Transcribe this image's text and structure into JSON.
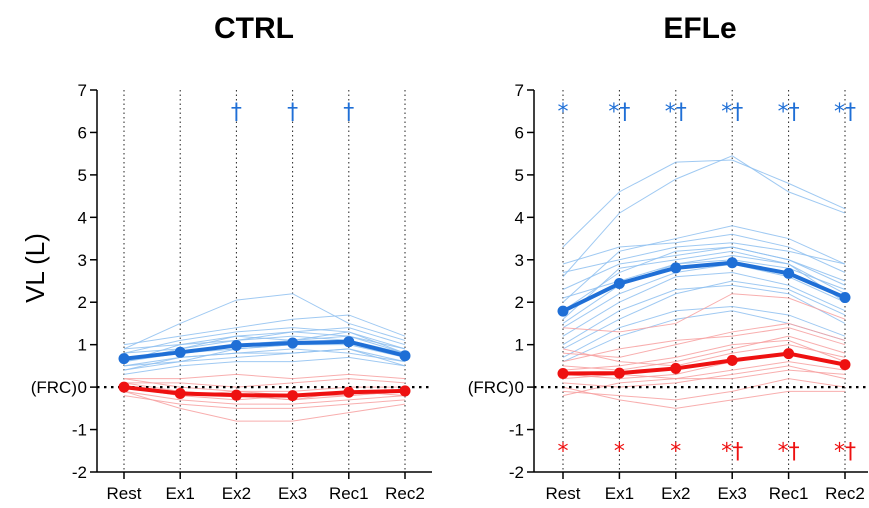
{
  "figure": {
    "ylabel": "VL (L)",
    "ref_label": "(FRC)",
    "colors": {
      "blue": "#1f6fd6",
      "blue_light": "#8ec0f0",
      "red": "#ee1111",
      "red_light": "#f7a0a0"
    }
  },
  "chart_data": [
    {
      "type": "line",
      "title": "CTRL",
      "categories": [
        "Rest",
        "Ex1",
        "Ex2",
        "Ex3",
        "Rec1",
        "Rec2"
      ],
      "ylabel": "VL (L)",
      "ylim": [
        -2,
        7
      ],
      "yticks": [
        "-2",
        "-1",
        "0",
        "1",
        "2",
        "3",
        "4",
        "5",
        "6",
        "7"
      ],
      "grid": "dotted vertical line at each category; dotted horizontal line at 0 (FRC)",
      "series": [
        {
          "color": "#1f6fd6",
          "style": "bold mean",
          "values": [
            0.67,
            0.82,
            0.98,
            1.04,
            1.07,
            0.74
          ]
        },
        {
          "color": "#ee1111",
          "style": "bold mean",
          "values": [
            0.0,
            -0.15,
            -0.19,
            -0.2,
            -0.12,
            -0.09
          ]
        }
      ],
      "individual_series": {
        "blue": [
          [
            0.6,
            0.9,
            1.1,
            1.2,
            1.1,
            0.8
          ],
          [
            0.5,
            0.7,
            0.8,
            0.9,
            0.8,
            0.6
          ],
          [
            0.8,
            1.1,
            1.3,
            1.4,
            1.3,
            0.9
          ],
          [
            0.4,
            0.6,
            0.7,
            0.8,
            0.9,
            0.6
          ],
          [
            0.9,
            1.5,
            2.05,
            2.2,
            1.5,
            1.1
          ],
          [
            0.7,
            0.8,
            1.0,
            1.1,
            1.2,
            0.8
          ],
          [
            0.3,
            0.5,
            0.6,
            0.6,
            0.7,
            0.5
          ],
          [
            1.0,
            1.2,
            1.4,
            1.6,
            1.7,
            1.2
          ],
          [
            0.6,
            1.0,
            1.2,
            1.1,
            1.3,
            0.8
          ],
          [
            0.5,
            0.6,
            0.9,
            1.0,
            1.0,
            0.7
          ],
          [
            0.8,
            0.9,
            1.2,
            1.3,
            1.4,
            1.0
          ],
          [
            0.4,
            0.7,
            0.8,
            0.8,
            0.9,
            0.5
          ],
          [
            0.9,
            1.0,
            1.1,
            1.3,
            1.2,
            0.9
          ],
          [
            0.6,
            0.8,
            0.9,
            1.0,
            1.1,
            0.7
          ]
        ],
        "red": [
          [
            0.1,
            -0.1,
            -0.2,
            -0.3,
            -0.2,
            -0.1
          ],
          [
            -0.1,
            -0.3,
            -0.4,
            -0.4,
            -0.3,
            -0.2
          ],
          [
            0.2,
            0.0,
            -0.1,
            -0.1,
            0.0,
            0.0
          ],
          [
            0.0,
            -0.2,
            -0.3,
            -0.2,
            -0.1,
            -0.1
          ],
          [
            -0.2,
            -0.4,
            -0.5,
            -0.5,
            -0.4,
            -0.3
          ],
          [
            0.1,
            0.1,
            0.0,
            0.1,
            0.2,
            0.1
          ],
          [
            0.0,
            -0.1,
            -0.2,
            -0.3,
            -0.1,
            -0.2
          ],
          [
            -0.1,
            -0.5,
            -0.8,
            -0.8,
            -0.6,
            -0.4
          ],
          [
            0.2,
            0.2,
            0.3,
            0.2,
            0.3,
            0.2
          ],
          [
            0.0,
            -0.2,
            -0.1,
            -0.2,
            -0.2,
            -0.1
          ]
        ]
      },
      "annotations": [
        {
          "category": "Ex2",
          "text": "†",
          "color": "#1f6fd6",
          "y": 6.6
        },
        {
          "category": "Ex3",
          "text": "†",
          "color": "#1f6fd6",
          "y": 6.6
        },
        {
          "category": "Rec1",
          "text": "†",
          "color": "#1f6fd6",
          "y": 6.6
        }
      ]
    },
    {
      "type": "line",
      "title": "EFLe",
      "categories": [
        "Rest",
        "Ex1",
        "Ex2",
        "Ex3",
        "Rec1",
        "Rec2"
      ],
      "ylabel": "",
      "ylim": [
        -2,
        7
      ],
      "yticks": [
        "-2",
        "-1",
        "0",
        "1",
        "2",
        "3",
        "4",
        "5",
        "6",
        "7"
      ],
      "grid": "dotted vertical line at each category; dotted horizontal line at 0 (FRC)",
      "series": [
        {
          "color": "#1f6fd6",
          "style": "bold mean",
          "values": [
            1.79,
            2.44,
            2.81,
            2.93,
            2.68,
            2.11
          ]
        },
        {
          "color": "#ee1111",
          "style": "bold mean",
          "values": [
            0.32,
            0.33,
            0.44,
            0.63,
            0.79,
            0.53
          ]
        }
      ],
      "individual_series": {
        "blue": [
          [
            3.3,
            4.6,
            5.3,
            5.35,
            4.8,
            4.2
          ],
          [
            2.6,
            4.1,
            4.9,
            5.45,
            4.6,
            4.1
          ],
          [
            2.0,
            3.2,
            3.5,
            3.8,
            3.5,
            2.9
          ],
          [
            1.5,
            2.4,
            2.9,
            3.1,
            2.9,
            2.2
          ],
          [
            0.9,
            1.6,
            2.2,
            2.5,
            2.3,
            1.7
          ],
          [
            2.9,
            3.3,
            3.4,
            3.6,
            3.3,
            2.7
          ],
          [
            1.2,
            2.0,
            2.6,
            2.7,
            2.4,
            1.8
          ],
          [
            0.7,
            1.4,
            1.8,
            1.9,
            1.7,
            1.2
          ],
          [
            2.3,
            2.9,
            3.1,
            3.3,
            3.0,
            2.4
          ],
          [
            1.8,
            2.7,
            3.2,
            3.3,
            3.0,
            2.5
          ],
          [
            1.0,
            1.8,
            2.3,
            2.4,
            2.2,
            1.5
          ],
          [
            2.7,
            3.0,
            3.3,
            3.4,
            3.2,
            2.9
          ],
          [
            1.4,
            2.2,
            2.7,
            2.9,
            2.6,
            2.0
          ],
          [
            0.6,
            1.2,
            1.6,
            1.8,
            1.5,
            1.1
          ],
          [
            2.1,
            2.5,
            2.9,
            3.0,
            2.8,
            2.3
          ],
          [
            1.6,
            2.8,
            3.0,
            3.2,
            2.9,
            2.0
          ]
        ],
        "red": [
          [
            1.4,
            1.3,
            1.5,
            2.2,
            2.1,
            1.6
          ],
          [
            0.8,
            0.7,
            1.0,
            1.3,
            1.5,
            1.1
          ],
          [
            0.5,
            0.4,
            0.6,
            0.9,
            1.2,
            0.8
          ],
          [
            0.3,
            0.2,
            0.3,
            0.6,
            0.8,
            0.5
          ],
          [
            0.1,
            0.0,
            0.1,
            0.3,
            0.5,
            0.2
          ],
          [
            -0.1,
            -0.2,
            -0.3,
            -0.1,
            0.2,
            0.0
          ],
          [
            0.6,
            0.9,
            1.1,
            1.2,
            1.4,
            1.0
          ],
          [
            0.2,
            0.3,
            0.2,
            0.4,
            0.6,
            0.4
          ],
          [
            0.0,
            -0.3,
            -0.5,
            -0.3,
            -0.1,
            -0.1
          ],
          [
            0.9,
            0.6,
            0.5,
            0.8,
            1.0,
            0.7
          ],
          [
            0.4,
            0.5,
            0.7,
            1.0,
            1.1,
            0.6
          ],
          [
            -0.2,
            0.1,
            0.2,
            0.2,
            0.4,
            0.3
          ]
        ]
      },
      "annotations": [
        {
          "category": "Rest",
          "text": "*",
          "color": "#1f6fd6",
          "y": 6.6
        },
        {
          "category": "Ex1",
          "text": "*†",
          "color": "#1f6fd6",
          "y": 6.6
        },
        {
          "category": "Ex2",
          "text": "*†",
          "color": "#1f6fd6",
          "y": 6.6
        },
        {
          "category": "Ex3",
          "text": "*†",
          "color": "#1f6fd6",
          "y": 6.6
        },
        {
          "category": "Rec1",
          "text": "*†",
          "color": "#1f6fd6",
          "y": 6.6
        },
        {
          "category": "Rec2",
          "text": "*†",
          "color": "#1f6fd6",
          "y": 6.6
        },
        {
          "category": "Rest",
          "text": "*",
          "color": "#ee1111",
          "y": -1.4
        },
        {
          "category": "Ex1",
          "text": "*",
          "color": "#ee1111",
          "y": -1.4
        },
        {
          "category": "Ex2",
          "text": "*",
          "color": "#ee1111",
          "y": -1.4
        },
        {
          "category": "Ex3",
          "text": "*†",
          "color": "#ee1111",
          "y": -1.4
        },
        {
          "category": "Rec1",
          "text": "*†",
          "color": "#ee1111",
          "y": -1.4
        },
        {
          "category": "Rec2",
          "text": "*†",
          "color": "#ee1111",
          "y": -1.4
        }
      ]
    }
  ]
}
